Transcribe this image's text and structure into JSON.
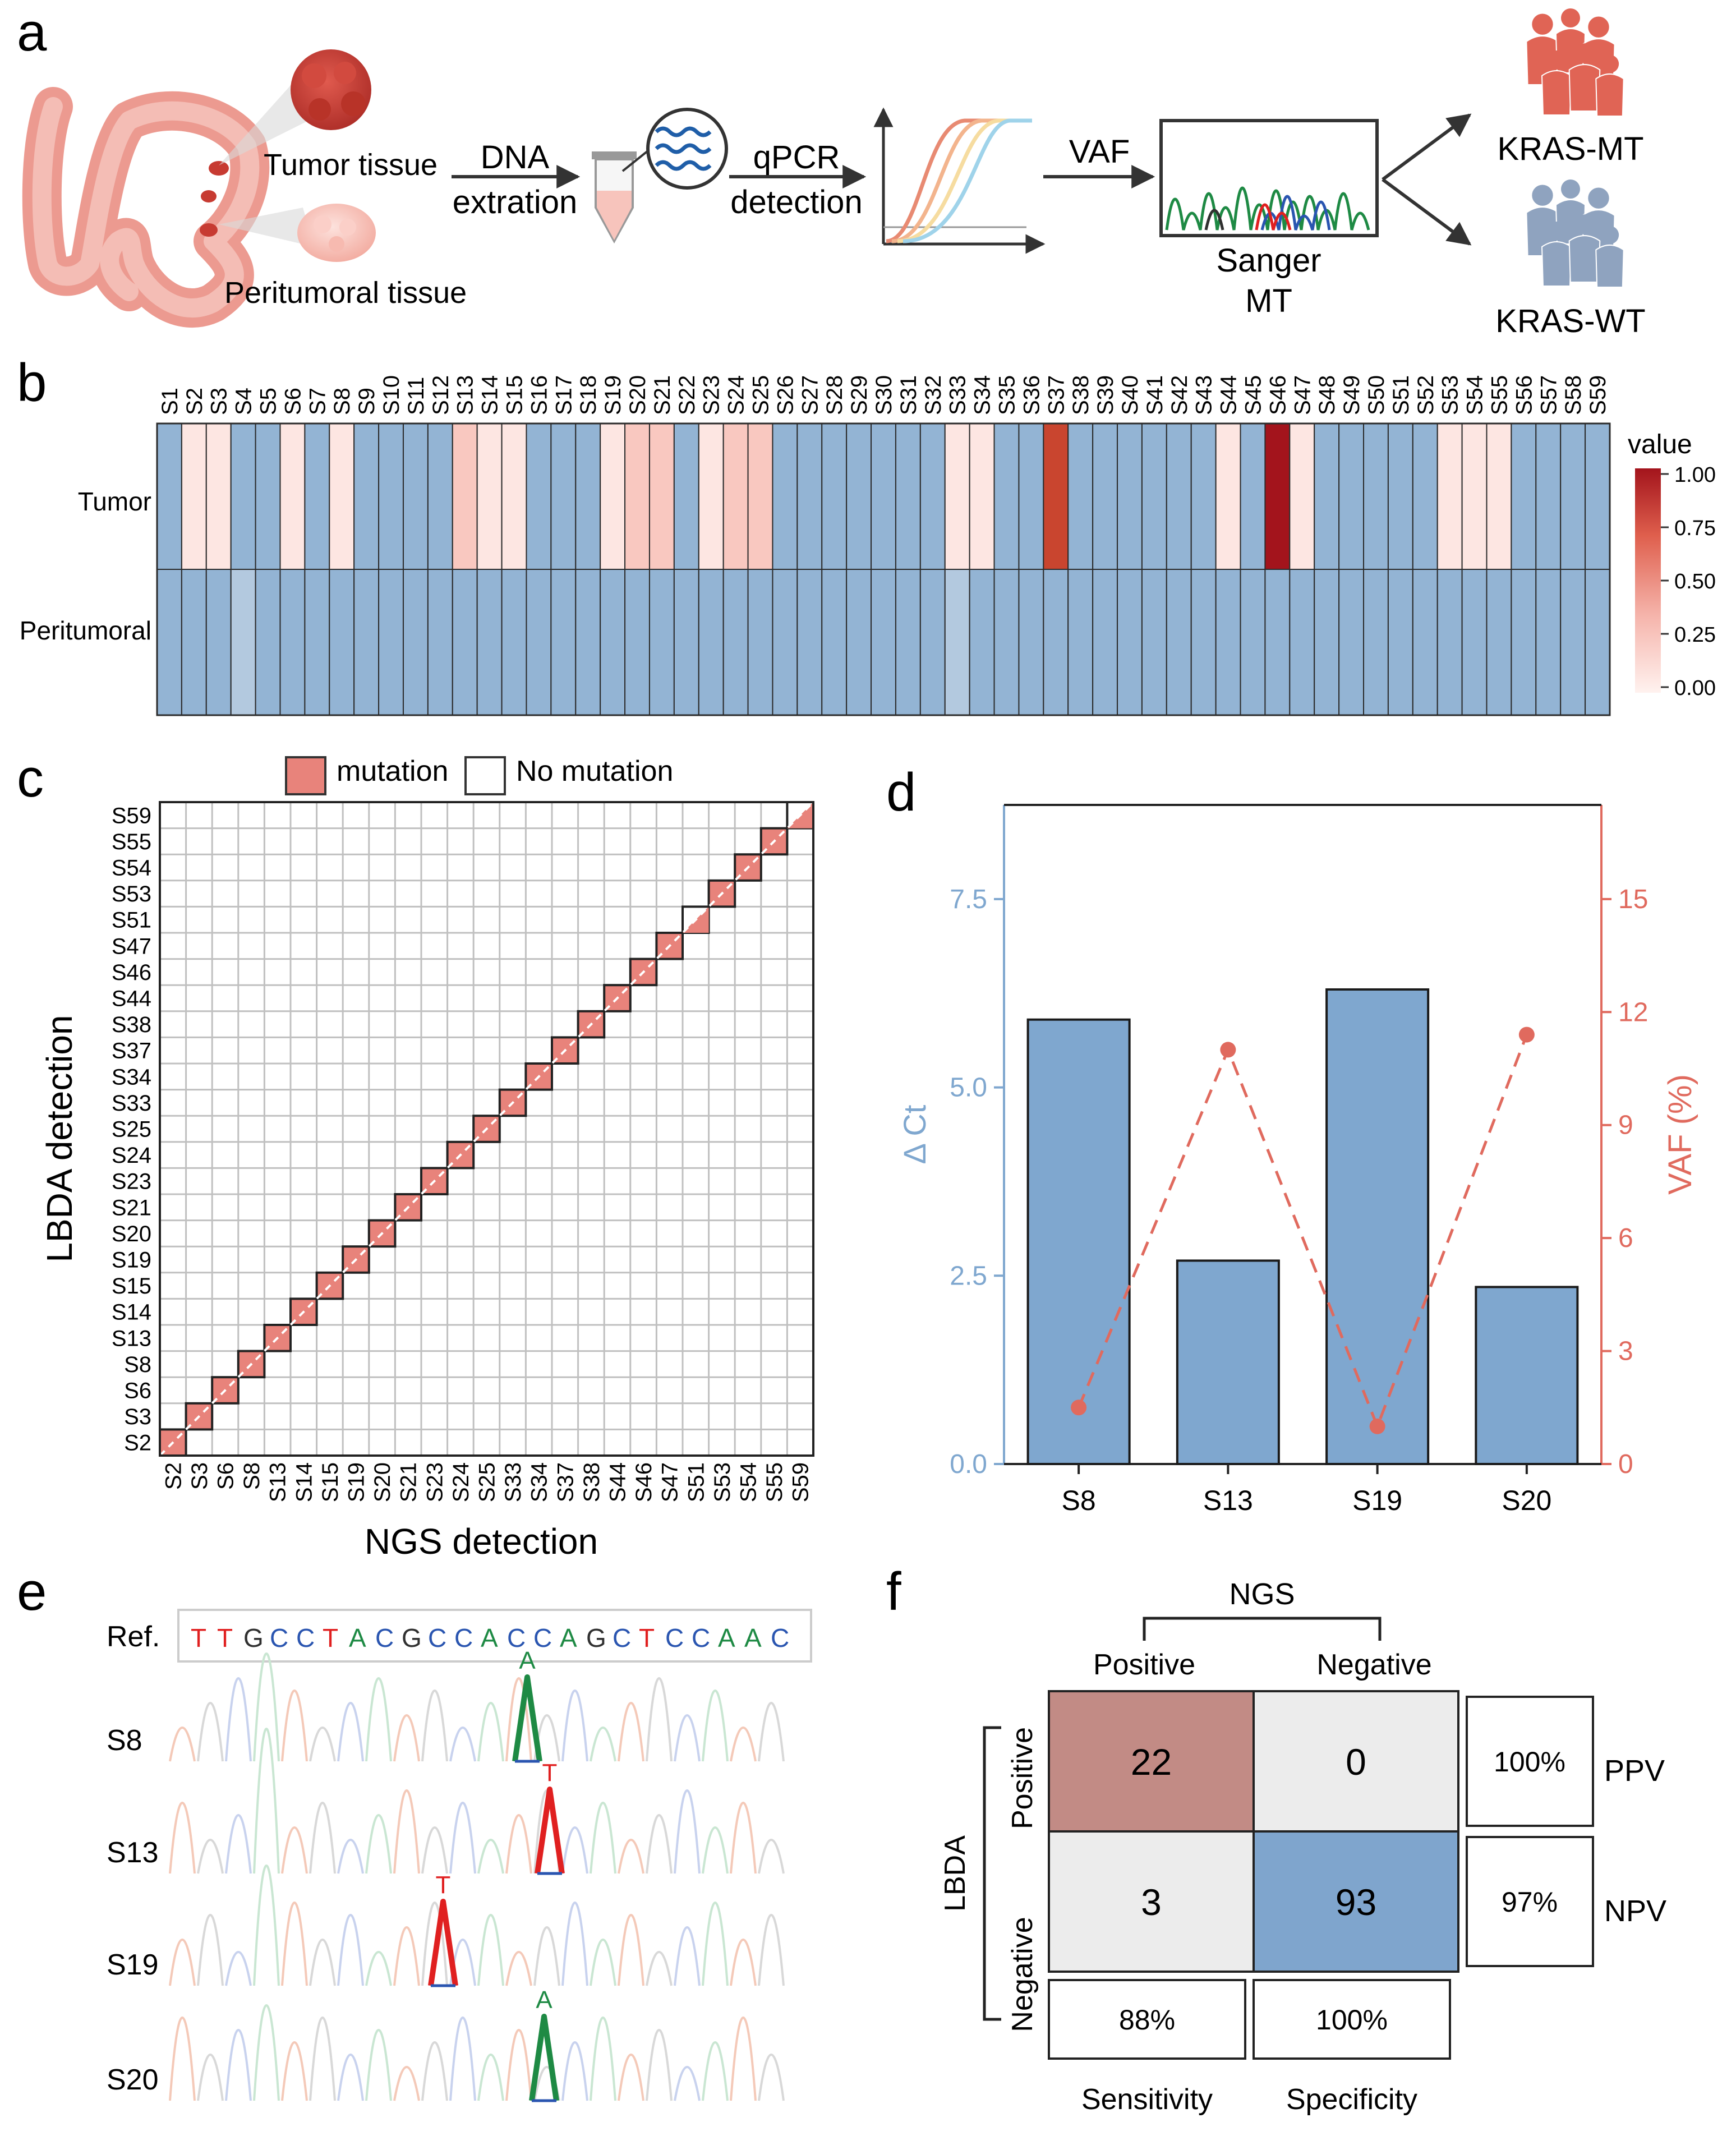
{
  "panels": {
    "a": "a",
    "b": "b",
    "c": "c",
    "d": "d",
    "e": "e",
    "f": "f"
  },
  "panel_a": {
    "tumor_label": "Tumor tissue",
    "peritumoral_label": "Peritumoral tissue",
    "step1_line1": "DNA",
    "step1_line2": "extration",
    "step2_line1": "qPCR",
    "step2_line2": "detection",
    "step3": "VAF",
    "sanger_line1": "Sanger",
    "sanger_line2": "MT",
    "group_mt": "KRAS-MT",
    "group_wt": "KRAS-WT",
    "colors": {
      "tissue": "#e88a80",
      "tumor": "#c73b32",
      "people_mt": "#e06455",
      "people_wt": "#8fa3bf"
    }
  },
  "panel_b": {
    "samples": [
      "S1",
      "S2",
      "S3",
      "S4",
      "S5",
      "S6",
      "S7",
      "S8",
      "S9",
      "S10",
      "S11",
      "S12",
      "S13",
      "S14",
      "S15",
      "S16",
      "S17",
      "S18",
      "S19",
      "S20",
      "S21",
      "S22",
      "S23",
      "S24",
      "S25",
      "S26",
      "S27",
      "S28",
      "S29",
      "S30",
      "S31",
      "S32",
      "S33",
      "S34",
      "S35",
      "S36",
      "S37",
      "S38",
      "S39",
      "S40",
      "S41",
      "S42",
      "S43",
      "S44",
      "S45",
      "S46",
      "S47",
      "S48",
      "S49",
      "S50",
      "S51",
      "S52",
      "S53",
      "S54",
      "S55",
      "S56",
      "S57",
      "S58",
      "S59"
    ],
    "row_labels": [
      "Tumor",
      "Peritumoral"
    ],
    "tumor_values": [
      0,
      0.05,
      0.03,
      0,
      0,
      0.04,
      0,
      0.04,
      0,
      0,
      0,
      0,
      0.12,
      0.06,
      0.05,
      0,
      0,
      0,
      0.06,
      0.14,
      0.14,
      0,
      0.08,
      0.12,
      0.13,
      0,
      0,
      0,
      0,
      0,
      0,
      0,
      0.04,
      0.08,
      0,
      0,
      0.85,
      0,
      0,
      0,
      0,
      0,
      0,
      0.04,
      0,
      1.0,
      0.04,
      0,
      0,
      0,
      0,
      0,
      0.08,
      0.08,
      0.06,
      0,
      0,
      0,
      0
    ],
    "peritumoral_values": [
      0,
      0,
      0,
      "low",
      0,
      0,
      0,
      0,
      0,
      0,
      0,
      0,
      0,
      0,
      0,
      0,
      0,
      0,
      0,
      0,
      0,
      0,
      0,
      0,
      0,
      0,
      0,
      0,
      0,
      0,
      0,
      0,
      "low",
      0,
      0,
      0,
      0,
      0,
      0,
      0,
      0,
      0,
      0,
      0,
      0,
      0,
      0,
      0,
      0,
      0,
      0,
      0,
      0,
      0,
      0,
      0,
      0,
      0,
      0
    ],
    "legend_title": "value",
    "legend_ticks": [
      "1.00",
      "0.75",
      "0.50",
      "0.25",
      "0.00"
    ],
    "colors": {
      "zero": "#93b4d4",
      "low": "#b3c9df",
      "high": "#a3141c",
      "mid": "#f2a69e",
      "pale": "#fde6e2"
    }
  },
  "panel_c": {
    "legend_mutation": "mutation",
    "legend_no_mutation": "No mutation",
    "ylabel": "LBDA detection",
    "xlabel": "NGS detection",
    "x_samples": [
      "S2",
      "S3",
      "S6",
      "S8",
      "S13",
      "S14",
      "S15",
      "S19",
      "S20",
      "S21",
      "S23",
      "S24",
      "S25",
      "S33",
      "S34",
      "S37",
      "S38",
      "S44",
      "S46",
      "S47",
      "S51",
      "S53",
      "S54",
      "S55",
      "S59"
    ],
    "y_samples_top_to_bottom": [
      "S59",
      "S55",
      "S54",
      "S53",
      "S51",
      "S47",
      "S46",
      "S44",
      "S38",
      "S37",
      "S34",
      "S33",
      "S25",
      "S24",
      "S23",
      "S21",
      "S20",
      "S19",
      "S15",
      "S14",
      "S13",
      "S8",
      "S6",
      "S3",
      "S2"
    ],
    "diagonal_state": [
      "full",
      "full",
      "full",
      "full",
      "full",
      "full",
      "full",
      "full",
      "full",
      "full",
      "full",
      "full",
      "full",
      "full",
      "full",
      "full",
      "full",
      "full",
      "full",
      "full",
      "half",
      "full",
      "full",
      "full",
      "half"
    ],
    "colors": {
      "mutation": "#e8837b",
      "grid": "#c0c0c0"
    }
  },
  "chart_data": [
    {
      "type": "bar",
      "panel": "d",
      "categories": [
        "S8",
        "S13",
        "S19",
        "S20"
      ],
      "series": [
        {
          "name": "ΔCt",
          "kind": "bar",
          "axis": "left",
          "values": [
            5.9,
            2.7,
            6.3,
            2.35
          ]
        },
        {
          "name": "VAF (%)",
          "kind": "line",
          "axis": "right",
          "values": [
            1.5,
            11.0,
            1.0,
            11.4
          ]
        }
      ],
      "ylabel_left": "Δ Ct",
      "ylabel_right": "VAF (%)",
      "ylim_left": [
        0,
        8.75
      ],
      "ylim_right": [
        0,
        17.5
      ],
      "yticks_left": [
        "0.0",
        "2.5",
        "5.0",
        "7.5"
      ],
      "yticks_left_values": [
        0,
        2.5,
        5,
        7.5
      ],
      "yticks_right": [
        "0",
        "3",
        "6",
        "9",
        "12",
        "15"
      ],
      "yticks_right_values": [
        0,
        3,
        6,
        9,
        12,
        15
      ],
      "colors": {
        "bar": "#7fa7cf",
        "line": "#e06a5e",
        "left_axis": "#7fa7cf",
        "right_axis": "#e06a5e"
      }
    },
    {
      "type": "table",
      "panel": "f",
      "title": "NGS",
      "col_labels": [
        "Positive",
        "Negative"
      ],
      "row_group": "LBDA",
      "row_labels": [
        "Positive",
        "Negative"
      ],
      "cells": [
        [
          22,
          0
        ],
        [
          3,
          93
        ]
      ],
      "row_metrics": [
        {
          "value": "100%",
          "name": "PPV"
        },
        {
          "value": "97%",
          "name": "NPV"
        }
      ],
      "col_metrics": [
        {
          "value": "88%",
          "name": "Sensitivity"
        },
        {
          "value": "100%",
          "name": "Specificity"
        }
      ],
      "colors": {
        "tp": "#c28b85",
        "tn": "#7fa5cd",
        "other": "#ececec"
      }
    }
  ],
  "panel_e": {
    "ref_label": "Ref.",
    "ref_sequence": [
      "T",
      "T",
      "G",
      "C",
      "C",
      "T",
      "A",
      "C",
      "G",
      "C",
      "C",
      "A",
      "C",
      "C",
      "A",
      "G",
      "C",
      "T",
      "C",
      "C",
      "A",
      "A",
      "C"
    ],
    "base_colors": {
      "T": "#e02020",
      "G": "#303030",
      "C": "#2a55b0",
      "A": "#1e8a44"
    },
    "rows": [
      {
        "label": "S8",
        "base": "A"
      },
      {
        "label": "S13",
        "base": "T"
      },
      {
        "label": "S19",
        "base": "T"
      },
      {
        "label": "S20",
        "base": "A"
      }
    ]
  }
}
